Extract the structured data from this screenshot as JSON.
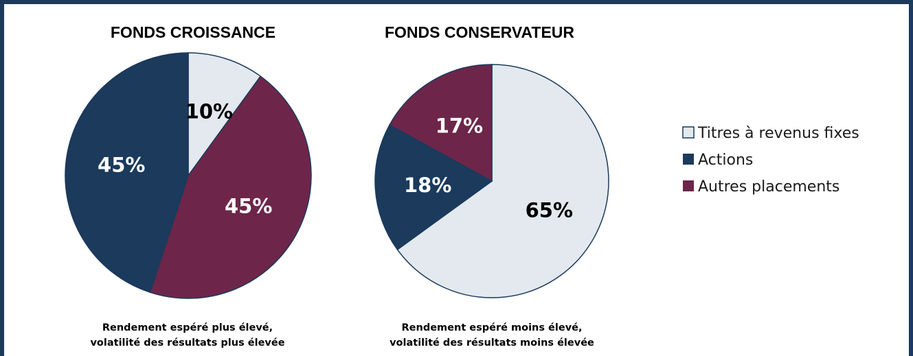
{
  "colors": {
    "titres": "#e3e9ee",
    "actions": "#1b3a5c",
    "autres": "#6e254a",
    "frame": "#1b3a5c"
  },
  "legend": {
    "items": [
      {
        "label": "Titres à revenus fixes",
        "color": "#e3e9ee"
      },
      {
        "label": "Actions",
        "color": "#1b3a5c"
      },
      {
        "label": "Autres placements",
        "color": "#6e254a"
      }
    ]
  },
  "chart_data": [
    {
      "type": "pie",
      "title": "FONDS CROISSANCE",
      "caption_lines": [
        "Rendement espéré plus élevé,",
        "volatilité des résultats plus élevée"
      ],
      "start": "12 o'clock, clockwise",
      "slices": [
        {
          "name": "Titres à revenus fixes",
          "value": 10,
          "label": "10%",
          "color": "#e3e9ee",
          "label_color": "#000000"
        },
        {
          "name": "Autres placements",
          "value": 45,
          "label": "45%",
          "color": "#6e254a",
          "label_color": "#ffffff"
        },
        {
          "name": "Actions",
          "value": 45,
          "label": "45%",
          "color": "#1b3a5c",
          "label_color": "#ffffff"
        }
      ]
    },
    {
      "type": "pie",
      "title": "FONDS CONSERVATEUR",
      "caption_lines": [
        "Rendement espéré moins élevé,",
        "volatilité des résultats moins élevée"
      ],
      "start": "12 o'clock, clockwise",
      "slices": [
        {
          "name": "Titres à revenus fixes",
          "value": 65,
          "label": "65%",
          "color": "#e3e9ee",
          "label_color": "#000000"
        },
        {
          "name": "Actions",
          "value": 18,
          "label": "18%",
          "color": "#1b3a5c",
          "label_color": "#ffffff"
        },
        {
          "name": "Autres placements",
          "value": 17,
          "label": "17%",
          "color": "#6e254a",
          "label_color": "#ffffff"
        }
      ]
    }
  ]
}
